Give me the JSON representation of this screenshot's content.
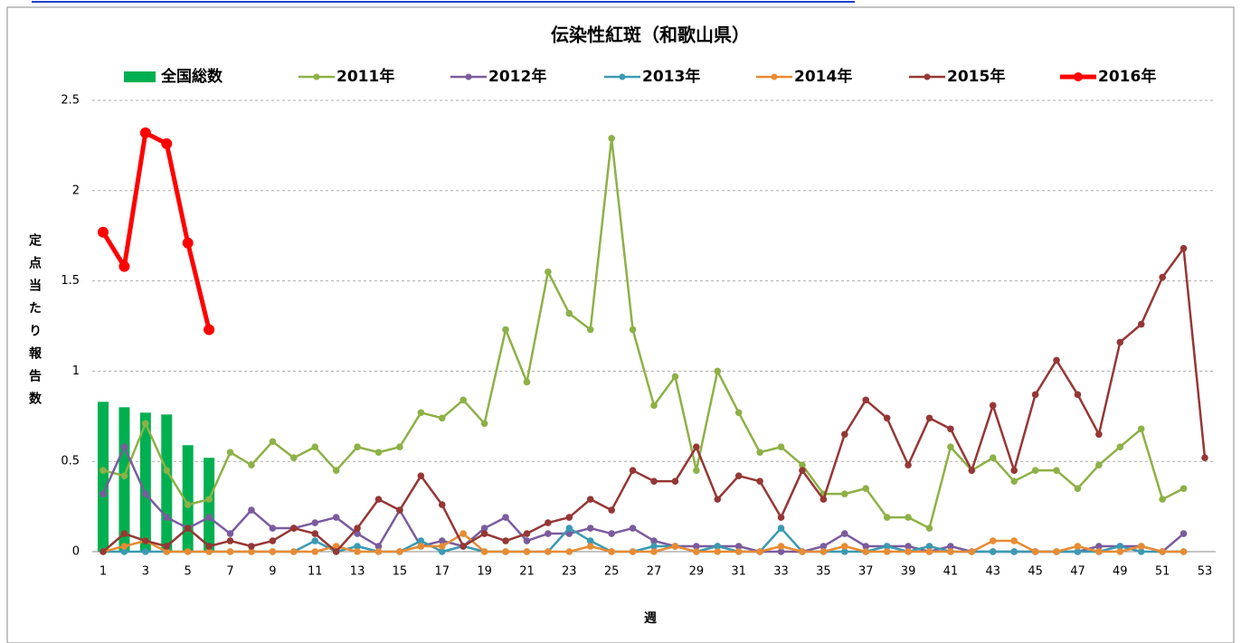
{
  "chart_data": {
    "type": "line",
    "title": "伝染性紅斑（和歌山県）",
    "x_label": "週",
    "y_label": "定点当たり報告数",
    "categories": [
      1,
      null,
      3,
      null,
      5,
      null,
      7,
      null,
      9,
      null,
      11,
      null,
      13,
      null,
      15,
      null,
      17,
      null,
      19,
      null,
      21,
      null,
      23,
      null,
      25,
      null,
      27,
      null,
      29,
      null,
      31,
      null,
      33,
      null,
      35,
      null,
      37,
      null,
      39,
      null,
      41,
      null,
      43,
      null,
      45,
      null,
      47,
      null,
      49,
      null,
      51,
      null,
      53
    ],
    "ylim": [
      0,
      2.5
    ],
    "yticks": [
      0,
      0.5,
      1,
      1.5,
      2,
      2.5
    ],
    "grid": true,
    "legend": "top",
    "series": [
      {
        "name": "全国総数",
        "type": "bar",
        "color": "#00b050",
        "values": [
          0.83,
          0.8,
          0.77,
          0.76,
          0.59,
          0.52,
          null,
          null,
          null,
          null,
          null,
          null,
          null,
          null,
          null,
          null,
          null,
          null,
          null,
          null,
          null,
          null,
          null,
          null,
          null,
          null,
          null,
          null,
          null,
          null,
          null,
          null,
          null,
          null,
          null,
          null,
          null,
          null,
          null,
          null,
          null,
          null,
          null,
          null,
          null,
          null,
          null,
          null,
          null,
          null,
          null,
          null,
          null
        ]
      },
      {
        "name": "2011年",
        "type": "line",
        "color": "#8db146",
        "line_width": 2.5,
        "values": [
          0.45,
          0.42,
          0.71,
          0.45,
          0.26,
          0.29,
          0.55,
          0.48,
          0.61,
          0.52,
          0.58,
          0.45,
          0.58,
          0.55,
          0.58,
          0.77,
          0.74,
          0.84,
          0.71,
          1.23,
          0.94,
          1.55,
          1.32,
          1.23,
          2.29,
          1.23,
          0.81,
          0.97,
          0.45,
          1.0,
          0.77,
          0.55,
          0.58,
          0.48,
          0.32,
          0.32,
          0.35,
          0.19,
          0.19,
          0.13,
          0.58,
          0.45,
          0.52,
          0.39,
          0.45,
          0.45,
          0.35,
          0.48,
          0.58,
          0.68,
          0.29,
          0.35,
          null
        ]
      },
      {
        "name": "2012年",
        "type": "line",
        "color": "#7a5c9e",
        "line_width": 2.5,
        "values": [
          0.32,
          0.58,
          0.32,
          0.19,
          0.13,
          0.19,
          0.1,
          0.23,
          0.13,
          0.13,
          0.16,
          0.19,
          0.1,
          0.03,
          0.23,
          0.03,
          0.06,
          0.03,
          0.13,
          0.19,
          0.06,
          0.1,
          0.1,
          0.13,
          0.1,
          0.13,
          0.06,
          0.03,
          0.03,
          0.03,
          0.03,
          0,
          0,
          0,
          0.03,
          0.1,
          0.03,
          0.03,
          0.03,
          0,
          0.03,
          0,
          0,
          0,
          0,
          0,
          0,
          0.03,
          0.03,
          0.03,
          0,
          0.1,
          null
        ]
      },
      {
        "name": "2013年",
        "type": "line",
        "color": "#3a9ab3",
        "line_width": 2.5,
        "values": [
          0,
          0,
          0,
          0,
          0,
          0,
          0,
          0,
          0,
          0,
          0.06,
          0,
          0.03,
          0,
          0,
          0.06,
          0,
          0.03,
          0,
          0,
          0,
          0,
          0.13,
          0.06,
          0,
          0,
          0.03,
          0.03,
          0,
          0.03,
          0,
          0,
          0.13,
          0,
          0,
          0,
          0,
          0.03,
          0,
          0.03,
          0,
          0,
          0,
          0,
          0,
          0,
          0,
          0,
          0.03,
          0,
          0,
          0,
          null
        ]
      },
      {
        "name": "2014年",
        "type": "line",
        "color": "#e88b33",
        "line_width": 2.5,
        "values": [
          0,
          0.03,
          0.06,
          0,
          0,
          0,
          0,
          0,
          0,
          0,
          0,
          0.03,
          0,
          0,
          0,
          0.03,
          0.03,
          0.1,
          0,
          0,
          0,
          0,
          0,
          0.03,
          0,
          0,
          0,
          0.03,
          0,
          0,
          0,
          0,
          0.03,
          0,
          0,
          0.03,
          0,
          0,
          0,
          0,
          0,
          0,
          0.06,
          0.06,
          0,
          0,
          0.03,
          0,
          0,
          0.03,
          0,
          0,
          null
        ]
      },
      {
        "name": "2015年",
        "type": "line",
        "color": "#953735",
        "line_width": 2.5,
        "values": [
          0,
          0.1,
          0.06,
          0.03,
          0.13,
          0.03,
          0.06,
          0.03,
          0.06,
          0.13,
          0.1,
          0,
          0.13,
          0.29,
          0.23,
          0.42,
          0.26,
          0.03,
          0.1,
          0.06,
          0.1,
          0.16,
          0.19,
          0.29,
          0.23,
          0.45,
          0.39,
          0.39,
          0.58,
          0.29,
          0.42,
          0.39,
          0.19,
          0.45,
          0.29,
          0.65,
          0.84,
          0.74,
          0.48,
          0.74,
          0.68,
          0.45,
          0.81,
          0.45,
          0.87,
          1.06,
          0.87,
          0.65,
          1.16,
          1.26,
          1.52,
          1.68,
          0.52
        ]
      },
      {
        "name": "2016年",
        "type": "line",
        "color": "#ff0000",
        "line_width": 5,
        "values": [
          1.77,
          1.58,
          2.32,
          2.26,
          1.71,
          1.23,
          null,
          null,
          null,
          null,
          null,
          null,
          null,
          null,
          null,
          null,
          null,
          null,
          null,
          null,
          null,
          null,
          null,
          null,
          null,
          null,
          null,
          null,
          null,
          null,
          null,
          null,
          null,
          null,
          null,
          null,
          null,
          null,
          null,
          null,
          null,
          null,
          null,
          null,
          null,
          null,
          null,
          null,
          null,
          null,
          null,
          null,
          null
        ]
      }
    ]
  }
}
